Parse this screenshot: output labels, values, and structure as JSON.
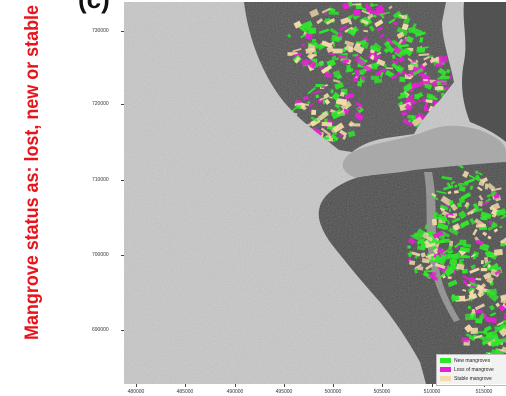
{
  "panel_label": "(c)",
  "side_title": "Mangrove status as: lost, new or stable",
  "colors": {
    "title_red": "#e8141b",
    "new": "#2ee82a",
    "loss": "#e81fd6",
    "stable": "#f3dcaa",
    "water": "#c9c9c9",
    "land": "#4a4a4a"
  },
  "y_ticks": [
    "730000",
    "720000",
    "710000",
    "700000",
    "690000"
  ],
  "x_ticks": [
    "480000",
    "485000",
    "490000",
    "495000",
    "500000",
    "505000",
    "510000",
    "515000"
  ],
  "legend": {
    "items": [
      {
        "label": "New mangroves",
        "color": "#2ee82a"
      },
      {
        "label": "Loss of mangrove",
        "color": "#e81fd6"
      },
      {
        "label": "Stable mangrove",
        "color": "#f3dcaa"
      }
    ]
  }
}
